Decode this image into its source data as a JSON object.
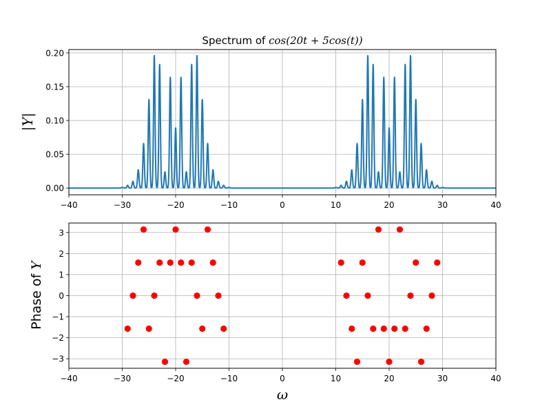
{
  "chart_data": [
    {
      "type": "line",
      "title_prefix": "Spectrum of ",
      "title_math": "cos(20t + 5cos(t))",
      "xlabel": "",
      "ylabel": "|Y|",
      "xlim": [
        -40,
        40
      ],
      "ylim": [
        -0.01,
        0.205
      ],
      "xticks": [
        -40,
        -30,
        -20,
        -10,
        0,
        10,
        20,
        30,
        40
      ],
      "yticks": [
        0.0,
        0.05,
        0.1,
        0.15,
        0.2
      ],
      "ytick_labels": [
        "0.00",
        "0.05",
        "0.10",
        "0.15",
        "0.20"
      ],
      "grid": true,
      "line_color": "#1f77b4",
      "peaks_x": [
        -30,
        -29,
        -28,
        -27,
        -26,
        -25,
        -24,
        -23,
        -22,
        -21,
        -20,
        -19,
        -18,
        -17,
        -16,
        -15,
        -14,
        -13,
        -12,
        -11,
        -10,
        10,
        11,
        12,
        13,
        14,
        15,
        16,
        17,
        18,
        19,
        20,
        21,
        22,
        23,
        24,
        25,
        26,
        27,
        28,
        29,
        30
      ],
      "peaks_y": [
        0.001,
        0.004,
        0.01,
        0.027,
        0.066,
        0.131,
        0.196,
        0.183,
        0.024,
        0.164,
        0.089,
        0.164,
        0.024,
        0.183,
        0.196,
        0.131,
        0.066,
        0.027,
        0.01,
        0.004,
        0.001,
        0.001,
        0.004,
        0.01,
        0.027,
        0.066,
        0.131,
        0.196,
        0.183,
        0.024,
        0.164,
        0.089,
        0.164,
        0.024,
        0.183,
        0.196,
        0.131,
        0.066,
        0.027,
        0.01,
        0.004,
        0.001
      ]
    },
    {
      "type": "scatter",
      "xlabel": "ω",
      "ylabel_prefix": "Phase of ",
      "ylabel_math": "Y",
      "xlim": [
        -40,
        40
      ],
      "ylim": [
        -3.45,
        3.45
      ],
      "xticks": [
        -40,
        -30,
        -20,
        -10,
        0,
        10,
        20,
        30,
        40
      ],
      "yticks": [
        -3,
        -2,
        -1,
        0,
        1,
        2,
        3
      ],
      "grid": true,
      "marker_color": "#ff0000",
      "x": [
        -29,
        -28,
        -27,
        -26,
        -25,
        -24,
        -23,
        -22,
        -21,
        -20,
        -19,
        -18,
        -17,
        -16,
        -15,
        -14,
        -13,
        -12,
        -11,
        11,
        12,
        13,
        14,
        15,
        16,
        17,
        18,
        19,
        20,
        21,
        22,
        23,
        24,
        25,
        26,
        27,
        28,
        29
      ],
      "y": [
        -1.5708,
        0,
        1.5708,
        3.1416,
        -1.5708,
        0,
        1.5708,
        -3.1416,
        1.5708,
        3.1416,
        1.5708,
        -3.1416,
        1.5708,
        0,
        -1.5708,
        3.1416,
        1.5708,
        0,
        -1.5708,
        1.5708,
        0,
        -1.5708,
        -3.1416,
        1.5708,
        0,
        -1.5708,
        3.1416,
        -1.5708,
        -3.1416,
        -1.5708,
        3.1416,
        -1.5708,
        0,
        1.5708,
        -3.1416,
        -1.5708,
        0,
        1.5708
      ]
    }
  ]
}
